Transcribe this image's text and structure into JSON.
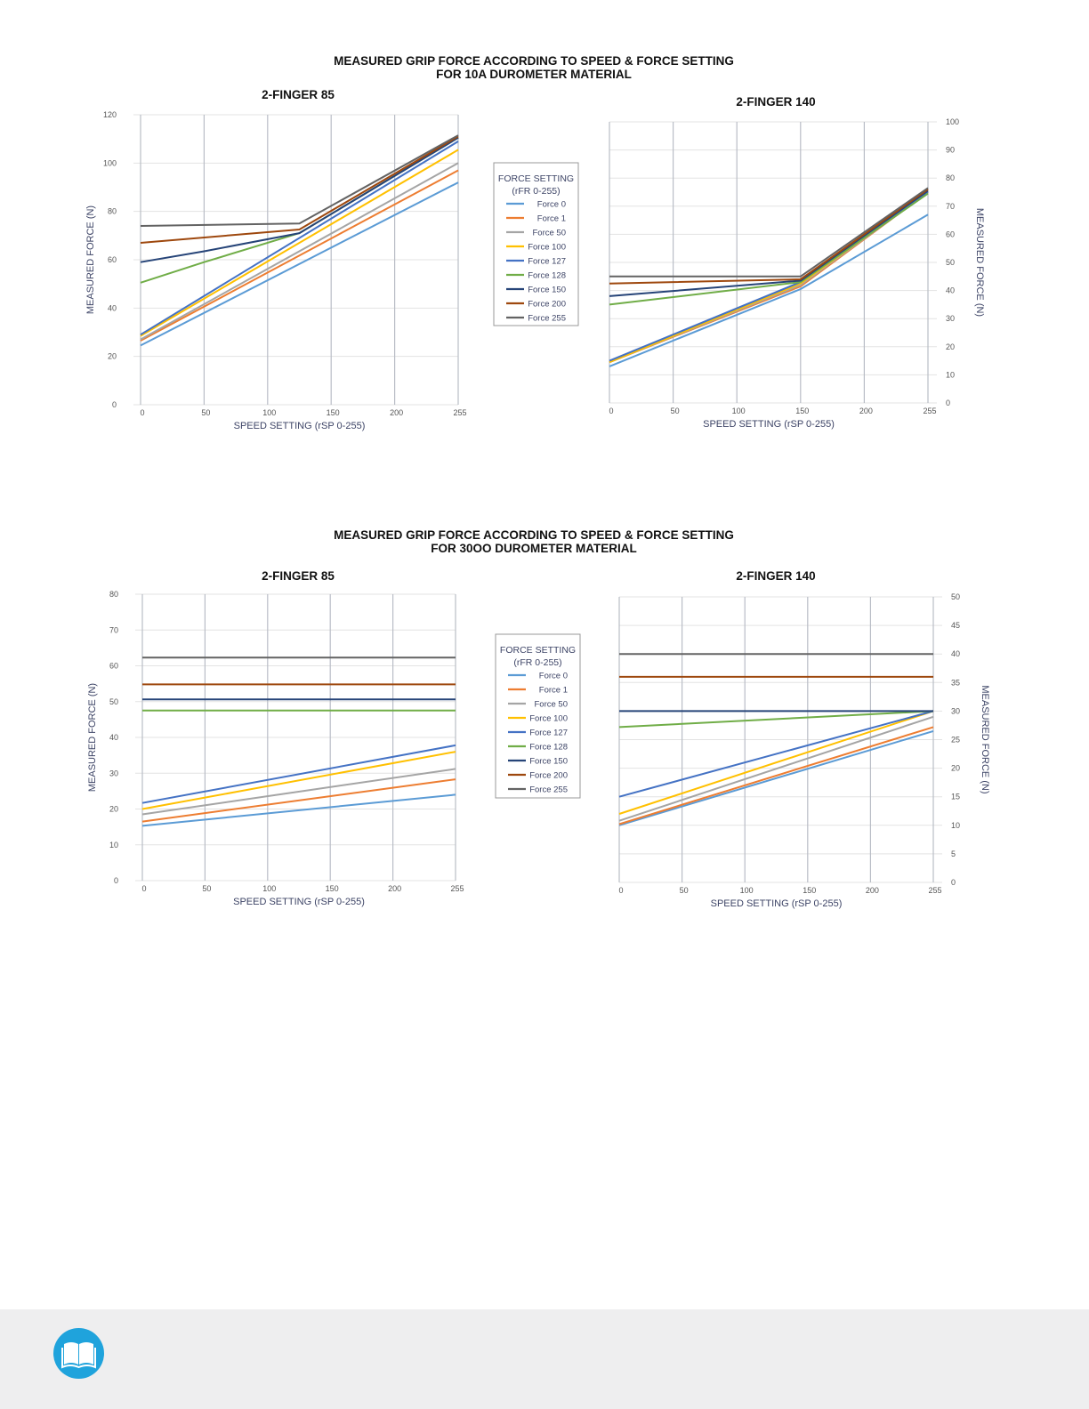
{
  "sections": [
    {
      "title_lines": [
        "MEASURED GRIP FORCE ACCORDING TO SPEED & FORCE SETTING",
        "FOR 10A DUROMETER MATERIAL"
      ],
      "legend": {
        "title": "FORCE SETTING",
        "subtitle": "(rFR 0-255)"
      }
    },
    {
      "title_lines": [
        "MEASURED GRIP FORCE ACCORDING TO SPEED & FORCE SETTING",
        "FOR 30OO DUROMETER MATERIAL"
      ],
      "legend": {
        "title": "FORCE SETTING",
        "subtitle": "(rFR 0-255)"
      }
    }
  ],
  "series_colors": {
    "Force 0": "#5b9bd5",
    "Force 1": "#ed7d31",
    "Force 50": "#a5a5a5",
    "Force 100": "#ffc000",
    "Force 127": "#4472c4",
    "Force 128": "#70ad47",
    "Force 150": "#264478",
    "Force 200": "#9e480e",
    "Force 255": "#636363"
  },
  "chart_data": [
    {
      "type": "line",
      "section": 0,
      "title": "2-FINGER 85",
      "xlabel": "SPEED SETTING (rSP 0-255)",
      "ylabel": "MEASURED FORCE (N)",
      "y_axis_side": "left",
      "xticks": [
        0,
        50,
        100,
        150,
        200,
        255
      ],
      "ylim": [
        0,
        120
      ],
      "yticks": [
        0,
        20,
        40,
        60,
        80,
        100,
        120
      ],
      "grid": true,
      "series": [
        {
          "name": "Force 0",
          "points": [
            [
              0,
              24.5
            ],
            [
              255,
              92
            ]
          ]
        },
        {
          "name": "Force 1",
          "points": [
            [
              0,
              26.5
            ],
            [
              255,
              97
            ]
          ]
        },
        {
          "name": "Force 50",
          "points": [
            [
              0,
              27
            ],
            [
              255,
              100
            ]
          ]
        },
        {
          "name": "Force 100",
          "points": [
            [
              0,
              28.5
            ],
            [
              255,
              105.5
            ]
          ]
        },
        {
          "name": "Force 127",
          "points": [
            [
              0,
              29
            ],
            [
              255,
              109
            ]
          ]
        },
        {
          "name": "Force 128",
          "points": [
            [
              0,
              50.5
            ],
            [
              50,
              59
            ],
            [
              125,
              71
            ],
            [
              255,
              110.5
            ]
          ]
        },
        {
          "name": "Force 150",
          "points": [
            [
              0,
              59
            ],
            [
              50,
              63.5
            ],
            [
              125,
              71
            ],
            [
              255,
              110.5
            ]
          ]
        },
        {
          "name": "Force 200",
          "points": [
            [
              0,
              67
            ],
            [
              125,
              72.5
            ],
            [
              255,
              111
            ]
          ]
        },
        {
          "name": "Force 255",
          "points": [
            [
              0,
              74
            ],
            [
              125,
              75
            ],
            [
              255,
              111.5
            ]
          ]
        }
      ]
    },
    {
      "type": "line",
      "section": 0,
      "title": "2-FINGER 140",
      "xlabel": "SPEED SETTING (rSP 0-255)",
      "ylabel": "MEASURED FORCE (N)",
      "y_axis_side": "right",
      "xticks": [
        0,
        50,
        100,
        150,
        200,
        255
      ],
      "ylim": [
        0,
        100
      ],
      "yticks": [
        0,
        10,
        20,
        30,
        40,
        50,
        60,
        70,
        80,
        90,
        100
      ],
      "grid": true,
      "series": [
        {
          "name": "Force 0",
          "points": [
            [
              0,
              13
            ],
            [
              150,
              40.5
            ],
            [
              255,
              67
            ]
          ]
        },
        {
          "name": "Force 1",
          "points": [
            [
              0,
              14.5
            ],
            [
              150,
              41.5
            ],
            [
              255,
              75
            ]
          ]
        },
        {
          "name": "Force 50",
          "points": [
            [
              0,
              14.5
            ],
            [
              150,
              42
            ],
            [
              255,
              75
            ]
          ]
        },
        {
          "name": "Force 100",
          "points": [
            [
              0,
              14.5
            ],
            [
              150,
              42.5
            ],
            [
              255,
              75
            ]
          ]
        },
        {
          "name": "Force 127",
          "points": [
            [
              0,
              15
            ],
            [
              150,
              43
            ],
            [
              255,
              75
            ]
          ]
        },
        {
          "name": "Force 128",
          "points": [
            [
              0,
              35
            ],
            [
              150,
              43
            ],
            [
              255,
              74.5
            ]
          ]
        },
        {
          "name": "Force 150",
          "points": [
            [
              0,
              38
            ],
            [
              150,
              43.5
            ],
            [
              255,
              75.5
            ]
          ]
        },
        {
          "name": "Force 200",
          "points": [
            [
              0,
              42.5
            ],
            [
              150,
              44
            ],
            [
              255,
              76
            ]
          ]
        },
        {
          "name": "Force 255",
          "points": [
            [
              0,
              45
            ],
            [
              150,
              45
            ],
            [
              255,
              76.5
            ]
          ]
        }
      ]
    },
    {
      "type": "line",
      "section": 1,
      "title": "2-FINGER 85",
      "xlabel": "SPEED SETTING (rSP 0-255)",
      "ylabel": "MEASURED FORCE (N)",
      "y_axis_side": "left",
      "xticks": [
        0,
        50,
        100,
        150,
        200,
        255
      ],
      "ylim": [
        0,
        80
      ],
      "yticks": [
        0,
        10,
        20,
        30,
        40,
        50,
        60,
        70,
        80
      ],
      "grid": true,
      "series": [
        {
          "name": "Force 0",
          "points": [
            [
              0,
              15.3
            ],
            [
              255,
              24
            ]
          ]
        },
        {
          "name": "Force 1",
          "points": [
            [
              0,
              16.5
            ],
            [
              255,
              28.3
            ]
          ]
        },
        {
          "name": "Force 50",
          "points": [
            [
              0,
              18.5
            ],
            [
              255,
              31.2
            ]
          ]
        },
        {
          "name": "Force 100",
          "points": [
            [
              0,
              20
            ],
            [
              255,
              36
            ]
          ]
        },
        {
          "name": "Force 127",
          "points": [
            [
              0,
              21.7
            ],
            [
              255,
              37.8
            ]
          ]
        },
        {
          "name": "Force 128",
          "points": [
            [
              0,
              47.5
            ],
            [
              255,
              47.5
            ]
          ]
        },
        {
          "name": "Force 150",
          "points": [
            [
              0,
              50.6
            ],
            [
              255,
              50.6
            ]
          ]
        },
        {
          "name": "Force 200",
          "points": [
            [
              0,
              54.8
            ],
            [
              255,
              54.8
            ]
          ]
        },
        {
          "name": "Force 255",
          "points": [
            [
              0,
              62.3
            ],
            [
              255,
              62.3
            ]
          ]
        }
      ]
    },
    {
      "type": "line",
      "section": 1,
      "title": "2-FINGER 140",
      "xlabel": "SPEED SETTING (rSP 0-255)",
      "ylabel": "MEASURED FORCE (N)",
      "y_axis_side": "right",
      "xticks": [
        0,
        50,
        100,
        150,
        200,
        255
      ],
      "ylim": [
        0,
        50
      ],
      "yticks": [
        0,
        5,
        10,
        15,
        20,
        25,
        30,
        35,
        40,
        45,
        50
      ],
      "grid": true,
      "series": [
        {
          "name": "Force 0",
          "points": [
            [
              0,
              10
            ],
            [
              255,
              26.5
            ]
          ]
        },
        {
          "name": "Force 1",
          "points": [
            [
              0,
              10.2
            ],
            [
              255,
              27.2
            ]
          ]
        },
        {
          "name": "Force 50",
          "points": [
            [
              0,
              10.8
            ],
            [
              255,
              29
            ]
          ]
        },
        {
          "name": "Force 100",
          "points": [
            [
              0,
              12
            ],
            [
              255,
              30
            ]
          ]
        },
        {
          "name": "Force 127",
          "points": [
            [
              0,
              15
            ],
            [
              255,
              30
            ]
          ]
        },
        {
          "name": "Force 128",
          "points": [
            [
              0,
              27.2
            ],
            [
              255,
              30
            ]
          ]
        },
        {
          "name": "Force 150",
          "points": [
            [
              0,
              30
            ],
            [
              255,
              30
            ]
          ]
        },
        {
          "name": "Force 200",
          "points": [
            [
              0,
              36
            ],
            [
              255,
              36
            ]
          ]
        },
        {
          "name": "Force 255",
          "points": [
            [
              0,
              40
            ],
            [
              255,
              40
            ]
          ]
        }
      ]
    }
  ]
}
